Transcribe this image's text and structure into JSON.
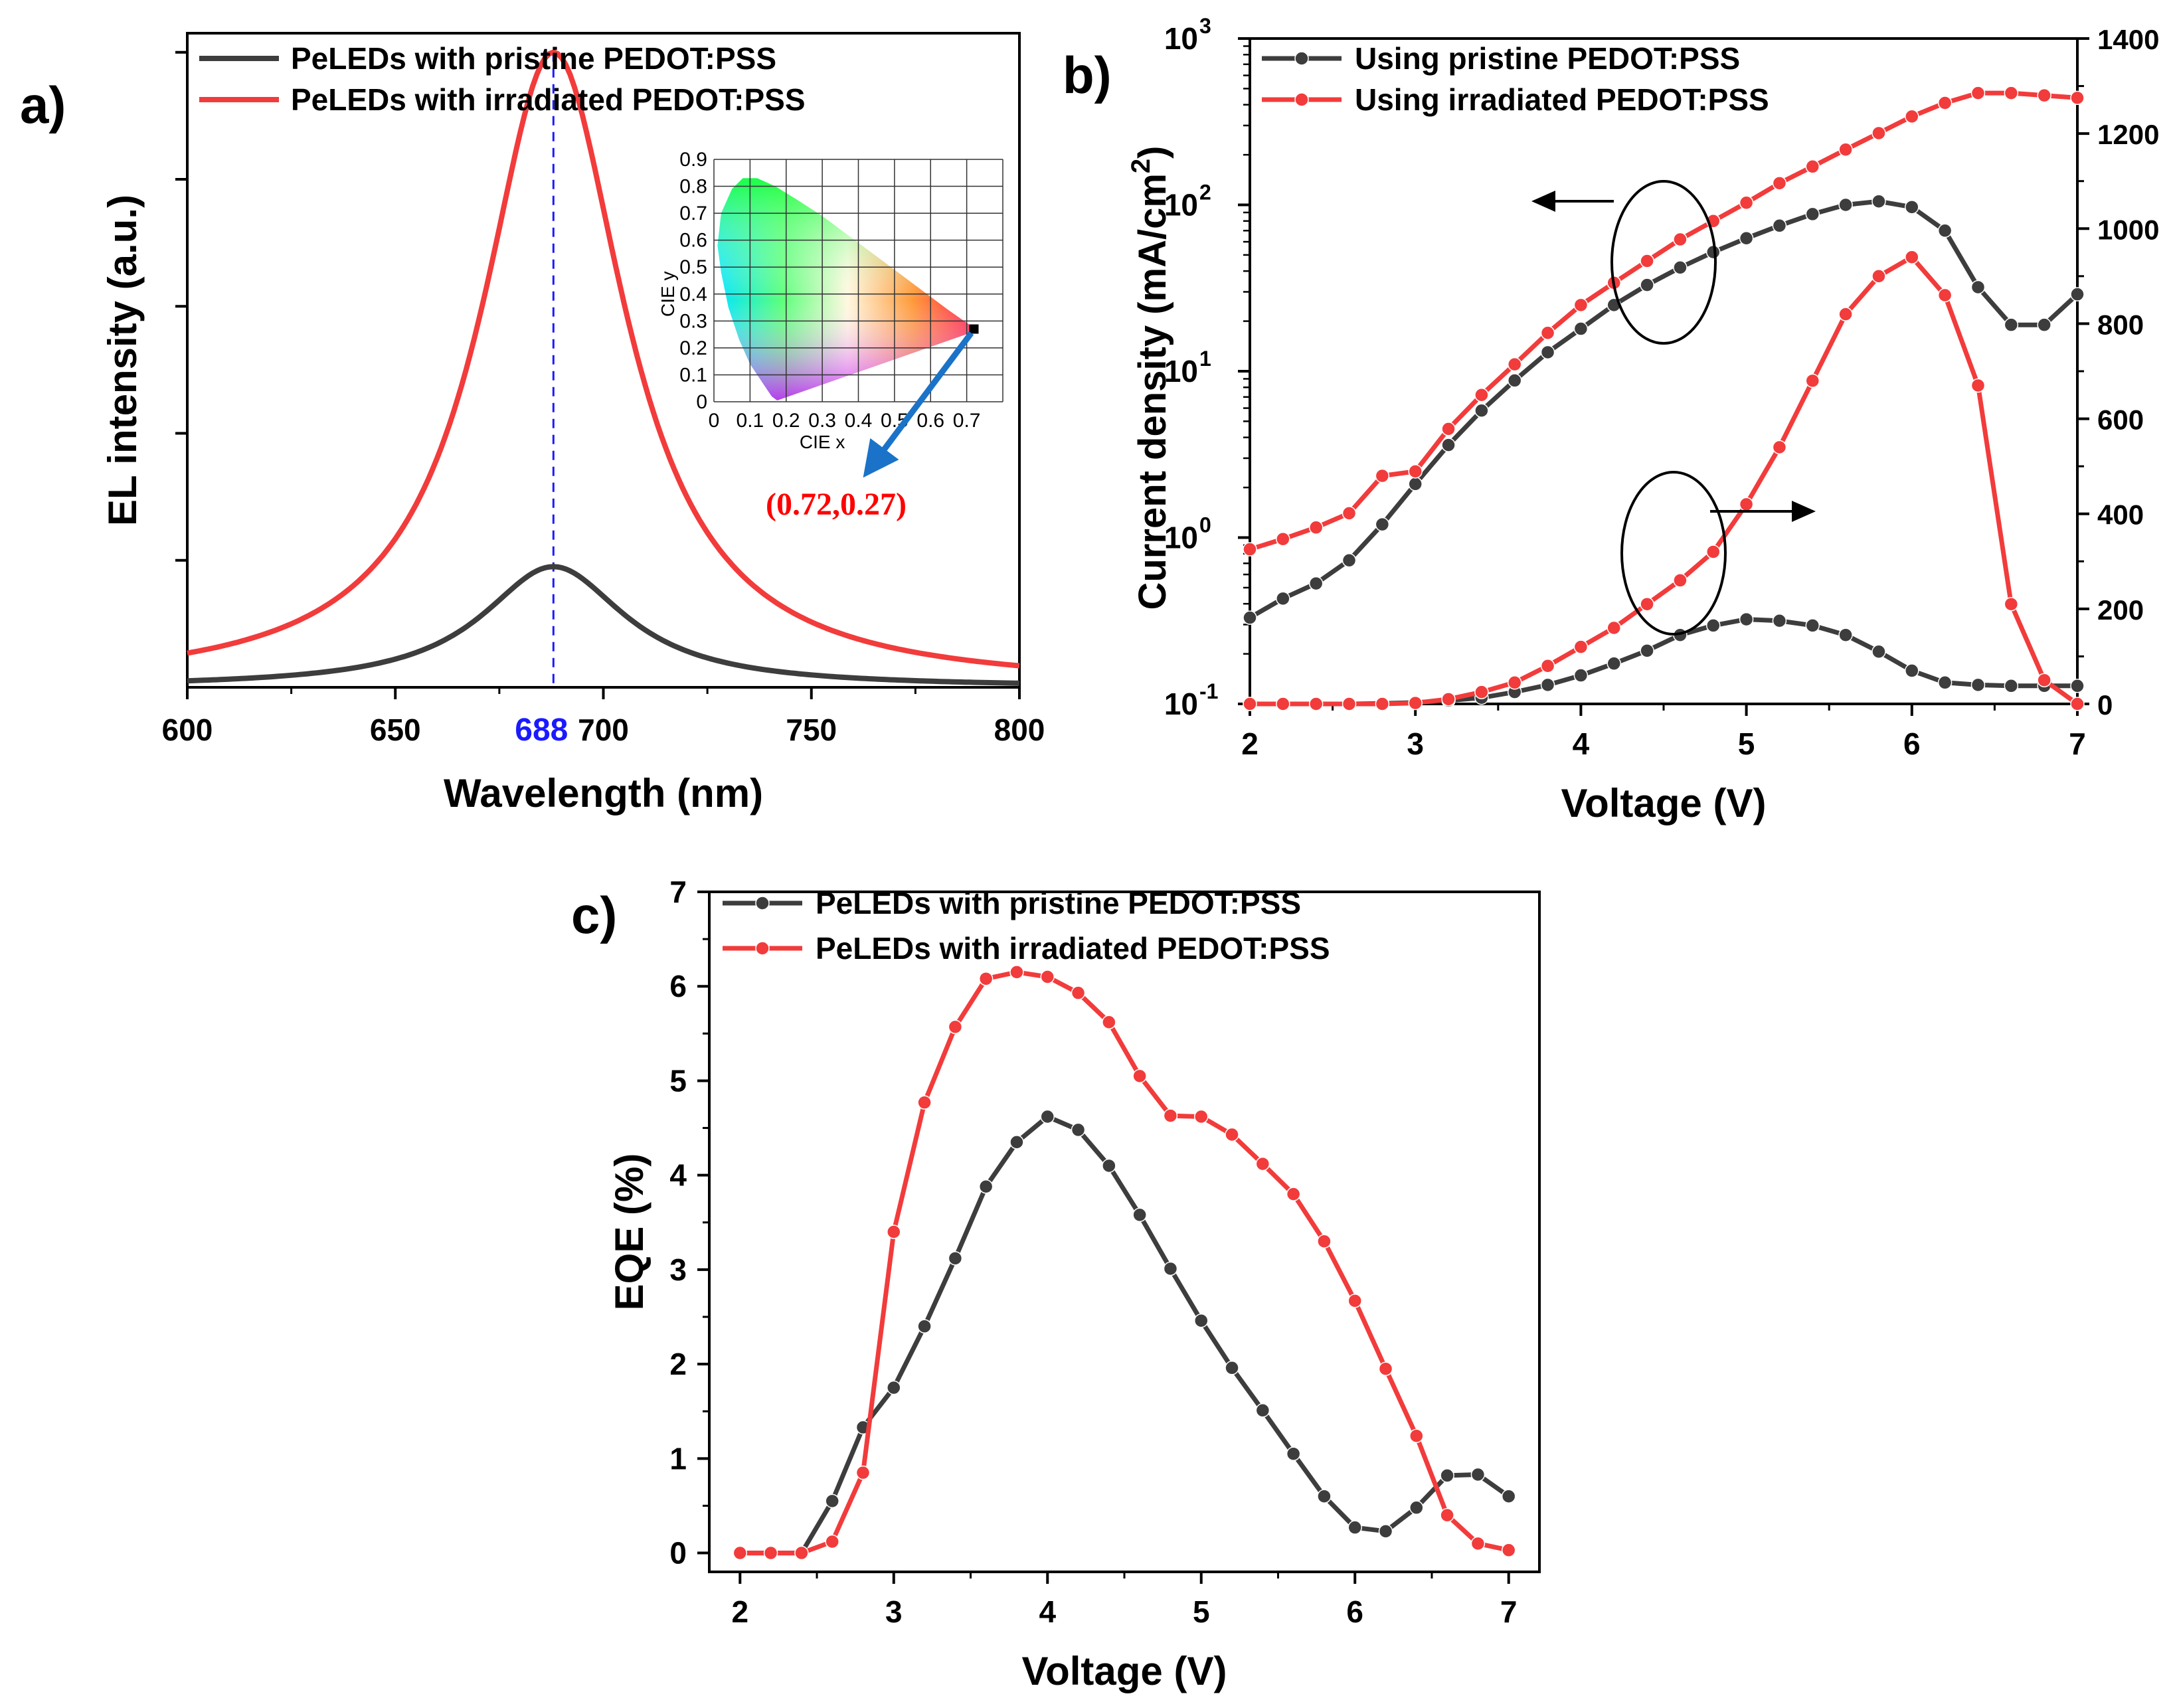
{
  "colors": {
    "pristine": "#3d3d3d",
    "irradiated": "#f23b3b",
    "peak_marker": "#1a1aff",
    "cie_label": "#ff0000",
    "cie_arrow": "#1a73c8"
  },
  "chart_data": [
    {
      "id": "a",
      "panel_label": "a)",
      "type": "line",
      "xlabel": "Wavelength (nm)",
      "ylabel": "EL intensity (a.u.)",
      "xlim": [
        600,
        800
      ],
      "ylim": [
        0,
        1.03
      ],
      "x_ticks": [
        "600",
        "650",
        "700",
        "750",
        "800"
      ],
      "peak_label": "688",
      "peak_x": 688,
      "legend_position": "top",
      "series": [
        {
          "name": "PeLEDs with pristine PEDOT:PSS",
          "color": "#3d3d3d",
          "peak": 688,
          "amplitude": 0.19,
          "hwhm": 21
        },
        {
          "name": "PeLEDs with irradiated PEDOT:PSS",
          "color": "#f23b3b",
          "peak": 688,
          "amplitude": 1.0,
          "hwhm": 21
        }
      ],
      "inset": {
        "type": "cie1931",
        "xlabel": "CIE x",
        "ylabel": "CIE y",
        "x_ticks": [
          "0",
          "0.1",
          "0.2",
          "0.3",
          "0.4",
          "0.5",
          "0.6",
          "0.7"
        ],
        "y_ticks": [
          "0",
          "0.1",
          "0.2",
          "0.3",
          "0.4",
          "0.5",
          "0.6",
          "0.7",
          "0.8",
          "0.9"
        ],
        "point": [
          0.72,
          0.27
        ],
        "point_label": "(0.72,0.27)"
      }
    },
    {
      "id": "b",
      "panel_label": "b)",
      "type": "line",
      "xlabel": "Voltage (V)",
      "ylabel": "Current density (mA/cm",
      "ylabel_sup": "2",
      "ylabel_close": ")",
      "xlim": [
        2,
        7
      ],
      "ylim_left_log10": [
        -1,
        3
      ],
      "ylim_right": [
        0,
        1400
      ],
      "x_ticks": [
        "2",
        "3",
        "4",
        "5",
        "6",
        "7"
      ],
      "y_ticks_left": [
        "10",
        "10",
        "10",
        "10",
        "10"
      ],
      "y_ticks_left_exp": [
        "-1",
        "0",
        "1",
        "2",
        "3"
      ],
      "y_ticks_right": [
        "0",
        "200",
        "400",
        "600",
        "800",
        "1000",
        "1200",
        "1400"
      ],
      "legend_position": "top-left",
      "x": [
        2.0,
        2.2,
        2.4,
        2.6,
        2.8,
        3.0,
        3.2,
        3.4,
        3.6,
        3.8,
        4.0,
        4.2,
        4.4,
        4.6,
        4.8,
        5.0,
        5.2,
        5.4,
        5.6,
        5.8,
        6.0,
        6.2,
        6.4,
        6.6,
        6.8,
        7.0
      ],
      "series": [
        {
          "name": "Using pristine PEDOT:PSS",
          "axis": "left",
          "color": "#3d3d3d",
          "values": [
            0.33,
            0.43,
            0.53,
            0.73,
            1.2,
            2.1,
            3.6,
            5.8,
            8.8,
            13,
            18,
            25,
            33,
            42,
            52,
            63,
            75,
            88,
            100,
            105,
            97,
            70,
            32,
            19,
            19,
            29
          ]
        },
        {
          "name": "Using irradiated PEDOT:PSS",
          "axis": "left",
          "color": "#f23b3b",
          "values": [
            0.85,
            0.98,
            1.15,
            1.4,
            2.35,
            2.5,
            4.5,
            7.2,
            11,
            17,
            25,
            34,
            46,
            62,
            80,
            103,
            135,
            170,
            215,
            270,
            340,
            410,
            470,
            470,
            455,
            440
          ]
        },
        {
          "name": "",
          "axis": "right",
          "color": "#3d3d3d",
          "values": [
            0,
            0,
            0,
            0,
            1,
            3,
            7,
            13,
            25,
            40,
            60,
            85,
            112,
            145,
            165,
            178,
            175,
            165,
            145,
            110,
            70,
            45,
            40,
            38,
            38,
            38
          ]
        },
        {
          "name": "",
          "axis": "right",
          "color": "#f23b3b",
          "values": [
            0,
            0,
            0,
            0,
            0,
            2,
            10,
            25,
            45,
            80,
            120,
            160,
            210,
            260,
            320,
            420,
            540,
            680,
            820,
            900,
            940,
            860,
            670,
            210,
            50,
            0
          ]
        }
      ],
      "annotations": [
        "ellipse-arrow-left",
        "ellipse-arrow-right"
      ]
    },
    {
      "id": "c",
      "panel_label": "c)",
      "type": "line",
      "xlabel": "Voltage (V)",
      "ylabel": "EQE (%)",
      "xlim": [
        1.8,
        7.2
      ],
      "ylim": [
        -0.2,
        7
      ],
      "x_ticks": [
        "2",
        "3",
        "4",
        "5",
        "6",
        "7"
      ],
      "y_ticks": [
        "0",
        "1",
        "2",
        "3",
        "4",
        "5",
        "6",
        "7"
      ],
      "legend_position": "top",
      "x": [
        2.0,
        2.2,
        2.4,
        2.6,
        2.8,
        3.0,
        3.2,
        3.4,
        3.6,
        3.8,
        4.0,
        4.2,
        4.4,
        4.6,
        4.8,
        5.0,
        5.2,
        5.4,
        5.6,
        5.8,
        6.0,
        6.2,
        6.4,
        6.6,
        6.8,
        7.0
      ],
      "series": [
        {
          "name": "PeLEDs with pristine PEDOT:PSS",
          "color": "#3d3d3d",
          "values": [
            0.0,
            0.0,
            0.0,
            0.55,
            1.33,
            1.75,
            2.4,
            3.12,
            3.88,
            4.35,
            4.62,
            4.48,
            4.1,
            3.58,
            3.01,
            2.46,
            1.96,
            1.51,
            1.05,
            0.6,
            0.27,
            0.23,
            0.48,
            0.82,
            0.83,
            0.6
          ]
        },
        {
          "name": "PeLEDs with irradiated PEDOT:PSS",
          "color": "#f23b3b",
          "values": [
            0.0,
            0.0,
            0.0,
            0.12,
            0.85,
            3.4,
            4.77,
            5.57,
            6.08,
            6.15,
            6.1,
            5.93,
            5.62,
            5.05,
            4.63,
            4.62,
            4.43,
            4.12,
            3.8,
            3.3,
            2.67,
            1.95,
            1.24,
            0.4,
            0.1,
            0.03
          ]
        }
      ]
    }
  ]
}
